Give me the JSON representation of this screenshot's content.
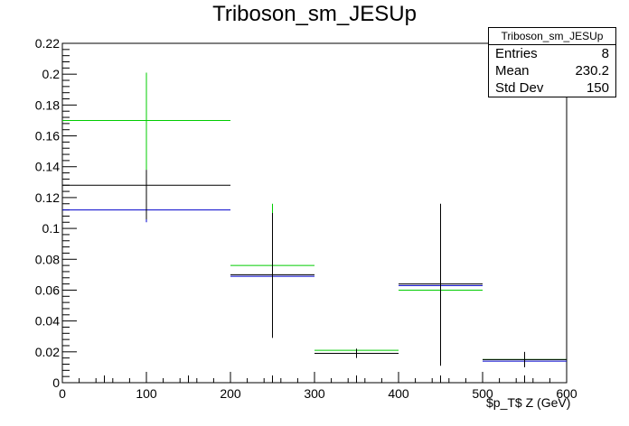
{
  "title": "Triboson_sm_JESUp",
  "stats": {
    "name": "Triboson_sm_JESUp",
    "rows": [
      {
        "label": "Entries",
        "value": "8"
      },
      {
        "label": "Mean",
        "value": "230.2"
      },
      {
        "label": "Std Dev",
        "value": "150"
      }
    ]
  },
  "chart_data": {
    "type": "histogram-errorbars",
    "title": "Triboson_sm_JESUp",
    "xlabel": "$p_T$ Z (GeV)",
    "ylabel": "",
    "xlim": [
      0,
      600
    ],
    "ylim": [
      0,
      0.22
    ],
    "x_ticks": [
      "0",
      "100",
      "200",
      "300",
      "400",
      "500",
      "600"
    ],
    "y_ticks": [
      "0",
      "0.02",
      "0.04",
      "0.06",
      "0.08",
      "0.1",
      "0.12",
      "0.14",
      "0.16",
      "0.18",
      "0.2",
      "0.22"
    ],
    "series": [
      {
        "color": "#00cc00",
        "bins": [
          {
            "x_lo": 0,
            "x_hi": 200,
            "x_center": 100,
            "value": 0.17,
            "err_lo": 0.138,
            "err_hi": 0.201
          },
          {
            "x_lo": 200,
            "x_hi": 300,
            "x_center": 250,
            "value": 0.076,
            "err_lo": 0.067,
            "err_hi": 0.116
          },
          {
            "x_lo": 300,
            "x_hi": 400,
            "x_center": 350,
            "value": 0.021,
            "err_lo": 0.018,
            "err_hi": 0.022
          },
          {
            "x_lo": 400,
            "x_hi": 500,
            "x_center": 450,
            "value": 0.06,
            "err_lo": 0.06,
            "err_hi": 0.06
          },
          {
            "x_lo": 500,
            "x_hi": 600,
            "x_center": 550,
            "value": 0.015,
            "err_lo": 0.015,
            "err_hi": 0.015
          }
        ]
      },
      {
        "color": "#0000cc",
        "bins": [
          {
            "x_lo": 0,
            "x_hi": 200,
            "x_center": 100,
            "value": 0.112,
            "err_lo": 0.104,
            "err_hi": 0.12
          },
          {
            "x_lo": 200,
            "x_hi": 300,
            "x_center": 250,
            "value": 0.069,
            "err_lo": 0.069,
            "err_hi": 0.069
          },
          {
            "x_lo": 300,
            "x_hi": 400,
            "x_center": 350,
            "value": 0.019,
            "err_lo": 0.019,
            "err_hi": 0.019
          },
          {
            "x_lo": 400,
            "x_hi": 500,
            "x_center": 450,
            "value": 0.063,
            "err_lo": 0.063,
            "err_hi": 0.063
          },
          {
            "x_lo": 500,
            "x_hi": 600,
            "x_center": 550,
            "value": 0.014,
            "err_lo": 0.014,
            "err_hi": 0.014
          }
        ]
      },
      {
        "color": "#000000",
        "bins": [
          {
            "x_lo": 0,
            "x_hi": 200,
            "x_center": 100,
            "value": 0.128,
            "err_lo": 0.106,
            "err_hi": 0.138
          },
          {
            "x_lo": 200,
            "x_hi": 300,
            "x_center": 250,
            "value": 0.07,
            "err_lo": 0.029,
            "err_hi": 0.11
          },
          {
            "x_lo": 300,
            "x_hi": 400,
            "x_center": 350,
            "value": 0.019,
            "err_lo": 0.016,
            "err_hi": 0.022
          },
          {
            "x_lo": 400,
            "x_hi": 500,
            "x_center": 450,
            "value": 0.064,
            "err_lo": 0.011,
            "err_hi": 0.116
          },
          {
            "x_lo": 500,
            "x_hi": 600,
            "x_center": 550,
            "value": 0.015,
            "err_lo": 0.01,
            "err_hi": 0.02
          }
        ]
      }
    ]
  }
}
